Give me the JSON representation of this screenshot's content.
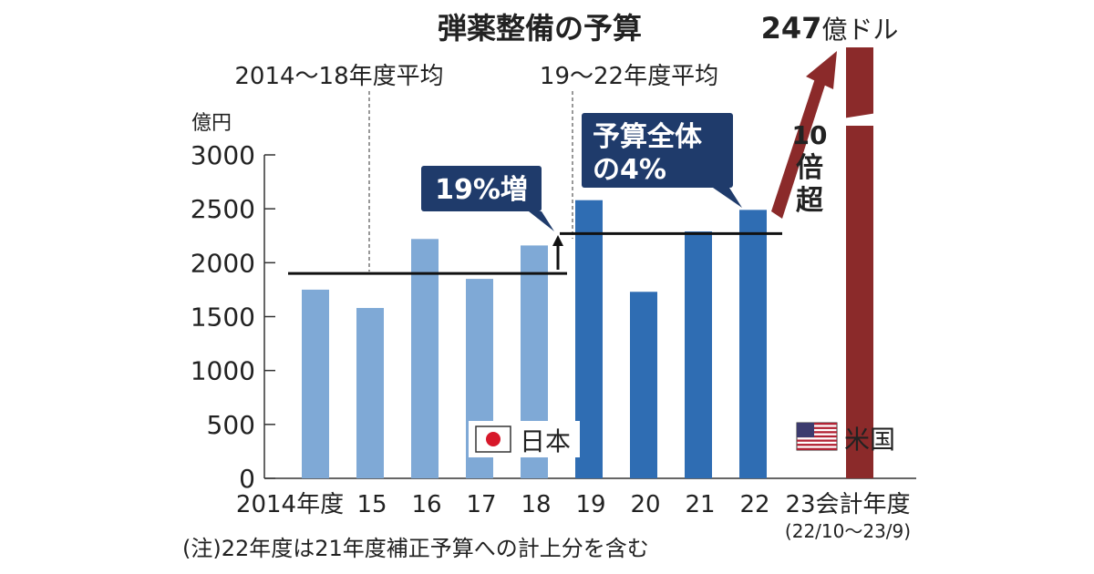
{
  "chart_data": {
    "type": "bar",
    "title": "弾薬整備の予算",
    "unit_label": "億円",
    "ylim": [
      0,
      3000
    ],
    "yticks": [
      "0",
      "500",
      "1000",
      "1500",
      "2000",
      "2500",
      "3000"
    ],
    "ytick_values": [
      0,
      500,
      1000,
      1500,
      2000,
      2500,
      3000
    ],
    "categories": [
      "2014年度",
      "15",
      "16",
      "17",
      "18",
      "19",
      "20",
      "21",
      "22"
    ],
    "x_extra_label": "23会計年度",
    "x_extra_sublabel": "(22/10〜23/9)",
    "series": [
      {
        "name": "日本",
        "values": [
          1750,
          1580,
          2220,
          1850,
          2160,
          2580,
          1730,
          2290,
          2490
        ],
        "colors": [
          "#7fa9d6",
          "#7fa9d6",
          "#7fa9d6",
          "#7fa9d6",
          "#7fa9d6",
          "#2f6db3",
          "#2f6db3",
          "#2f6db3",
          "#2f6db3"
        ]
      },
      {
        "name": "米国",
        "value_label": "247億ドル",
        "value_number": "247",
        "value_unit": "億ドル",
        "color": "#8b2a2a"
      }
    ],
    "averages": [
      {
        "label": "2014〜18年度平均",
        "value": 1900,
        "from": 0,
        "to": 4
      },
      {
        "label": "19〜22年度平均",
        "value": 2270,
        "from": 5,
        "to": 8
      }
    ],
    "annotations": {
      "increase": "19%増",
      "share_line1": "予算全体",
      "share_line2": "の4%",
      "ratio_line1": "10",
      "ratio_line2": "倍",
      "ratio_line3": "超"
    },
    "legend": {
      "japan": "日本",
      "usa": "米国"
    },
    "note": "(注)22年度は21年度補正予算への計上分を含む"
  },
  "colors": {
    "light_bar": "#7fa9d6",
    "dark_bar": "#2f6db3",
    "us_bar": "#8b2a2a",
    "callout_bg": "#1f3b6b",
    "axis": "#333333"
  }
}
